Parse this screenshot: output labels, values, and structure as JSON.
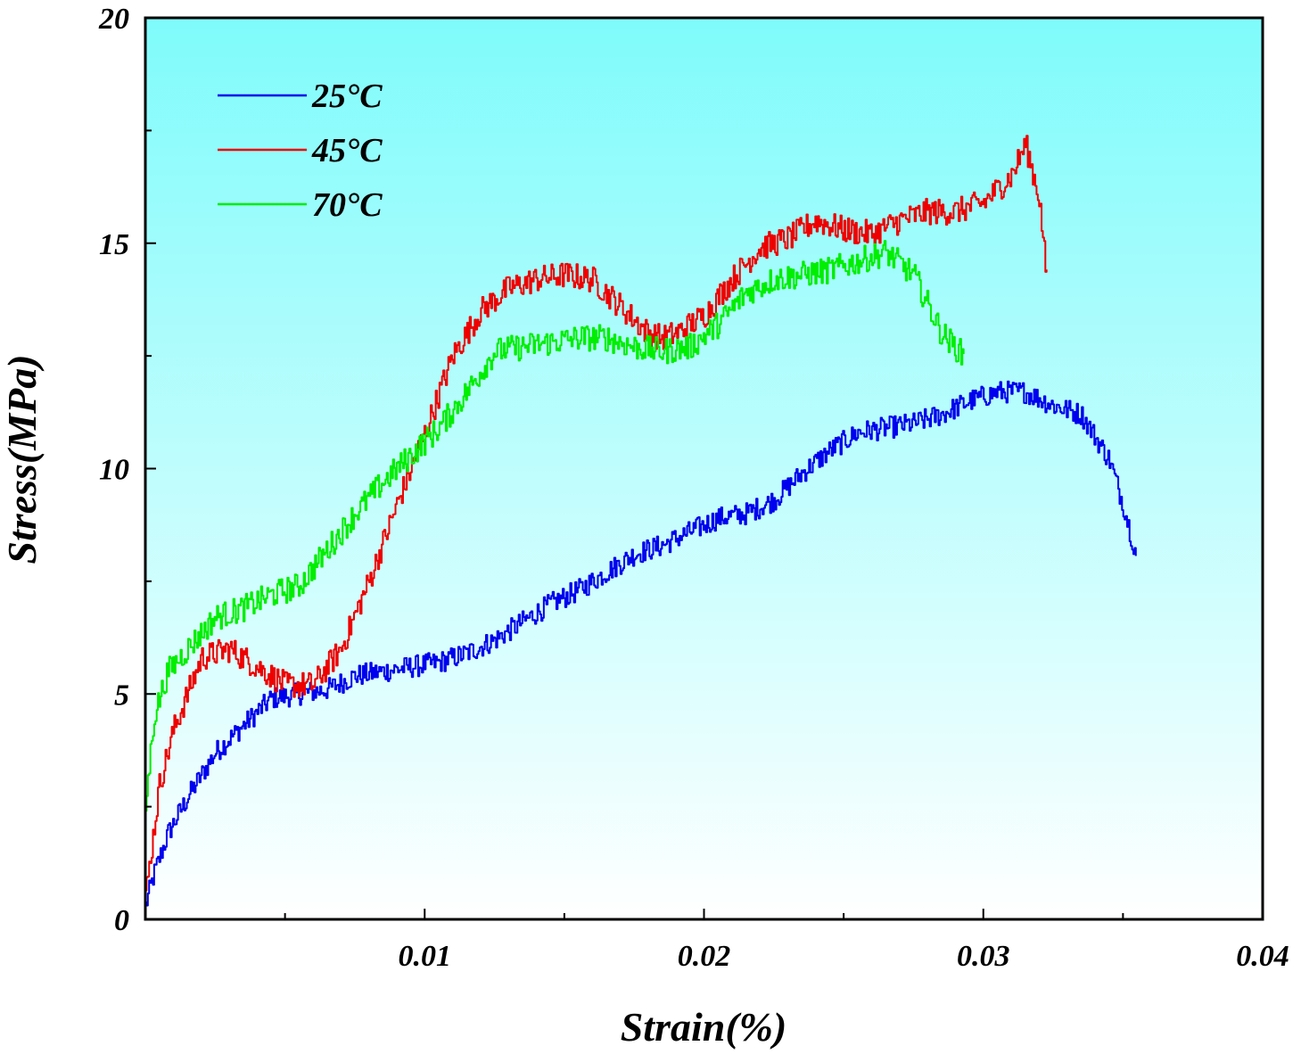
{
  "chart_data": {
    "type": "line",
    "title": "",
    "xlabel": "Strain(%)",
    "ylabel": "Stress(MPa)",
    "xlim": [
      0,
      0.04
    ],
    "ylim": [
      0,
      20
    ],
    "xticks": [
      0.01,
      0.02,
      0.03,
      0.04
    ],
    "xtick_labels": [
      "0.01",
      "0.02",
      "0.03",
      "0.04"
    ],
    "yticks": [
      0,
      5,
      10,
      15,
      20
    ],
    "ytick_labels": [
      "0",
      "5",
      "10",
      "15",
      "20"
    ],
    "background_gradient": [
      "#7ffbfb",
      "#ffffff"
    ],
    "legend_position": "top-left",
    "series": [
      {
        "name": "25°C",
        "color": "#0000ee",
        "noise": 0.25,
        "x": [
          0,
          0.0003,
          0.0008,
          0.0015,
          0.0025,
          0.0035,
          0.0045,
          0.0055,
          0.0065,
          0.0075,
          0.0085,
          0.0095,
          0.0105,
          0.0115,
          0.0125,
          0.0135,
          0.0145,
          0.0155,
          0.0165,
          0.0175,
          0.0185,
          0.0195,
          0.0205,
          0.0215,
          0.0225,
          0.0235,
          0.0245,
          0.0255,
          0.0265,
          0.0275,
          0.0285,
          0.0295,
          0.0305,
          0.0315,
          0.0325,
          0.0335,
          0.0345,
          0.035,
          0.0355
        ],
        "y": [
          0.3,
          1.0,
          1.9,
          2.7,
          3.7,
          4.3,
          4.9,
          5.0,
          5.1,
          5.4,
          5.5,
          5.6,
          5.7,
          5.9,
          6.2,
          6.6,
          7.0,
          7.3,
          7.7,
          8.1,
          8.3,
          8.6,
          8.9,
          9.0,
          9.3,
          9.9,
          10.4,
          10.8,
          10.9,
          11.0,
          11.2,
          11.5,
          11.7,
          11.7,
          11.4,
          11.2,
          10.2,
          9.2,
          8.0
        ]
      },
      {
        "name": "45°C",
        "color": "#ee0000",
        "noise": 0.3,
        "x": [
          0,
          0.0005,
          0.001,
          0.0015,
          0.002,
          0.003,
          0.004,
          0.005,
          0.006,
          0.007,
          0.008,
          0.009,
          0.01,
          0.011,
          0.012,
          0.013,
          0.014,
          0.015,
          0.016,
          0.017,
          0.018,
          0.0185,
          0.019,
          0.02,
          0.021,
          0.022,
          0.023,
          0.024,
          0.025,
          0.026,
          0.027,
          0.028,
          0.029,
          0.03,
          0.031,
          0.0315,
          0.032,
          0.0323
        ],
        "y": [
          0.5,
          3.0,
          4.2,
          5.0,
          5.8,
          6.0,
          5.6,
          5.2,
          5.2,
          6.0,
          7.5,
          9.2,
          10.8,
          12.5,
          13.5,
          14.0,
          14.2,
          14.3,
          14.2,
          13.6,
          13.0,
          12.9,
          13.0,
          13.4,
          14.2,
          14.9,
          15.1,
          15.5,
          15.3,
          15.2,
          15.5,
          15.7,
          15.7,
          15.9,
          16.5,
          17.2,
          16.0,
          13.9
        ]
      },
      {
        "name": "70°C",
        "color": "#00ee00",
        "noise": 0.3,
        "x": [
          0,
          0.0003,
          0.0008,
          0.0015,
          0.0025,
          0.0035,
          0.0045,
          0.0055,
          0.0065,
          0.0075,
          0.0085,
          0.0095,
          0.0105,
          0.0115,
          0.0125,
          0.0135,
          0.0145,
          0.0155,
          0.0165,
          0.0175,
          0.0185,
          0.0195,
          0.0205,
          0.0215,
          0.0225,
          0.0235,
          0.0245,
          0.0255,
          0.0265,
          0.0275,
          0.0285,
          0.0293
        ],
        "y": [
          2.5,
          4.5,
          5.5,
          6.0,
          6.7,
          6.9,
          7.2,
          7.4,
          8.2,
          9.0,
          9.7,
          10.3,
          10.9,
          11.7,
          12.6,
          12.7,
          12.8,
          12.9,
          12.9,
          12.7,
          12.6,
          12.7,
          13.2,
          13.9,
          14.2,
          14.3,
          14.4,
          14.6,
          14.8,
          14.3,
          13.0,
          12.5
        ]
      }
    ]
  }
}
